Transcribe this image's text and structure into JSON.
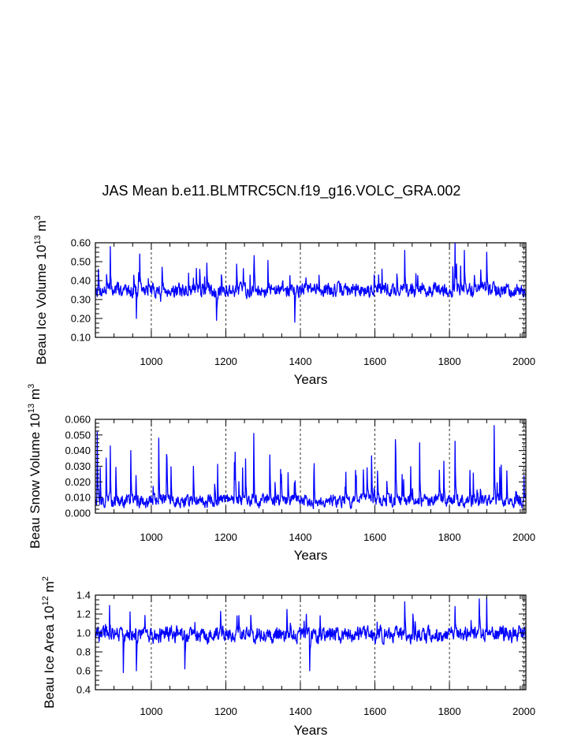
{
  "title": "JAS Mean b.e11.BLMTRC5CN.f19_g16.VOLC_GRA.002",
  "colors": {
    "series": "#0000ff",
    "axis": "#000000",
    "grid": "#000000"
  },
  "chart_data": [
    {
      "type": "line",
      "ylabel_main": "Beau Ice Volume 10",
      "ylabel_exp": "13",
      "ylabel_unit": " m",
      "ylabel_unit_exp": "3",
      "xlabel": "Years",
      "xlim": [
        850,
        2005
      ],
      "ylim": [
        0.1,
        0.6
      ],
      "xticks": [
        1000,
        1200,
        1400,
        1600,
        1800,
        2000
      ],
      "yticks": [
        "0.10",
        "0.20",
        "0.30",
        "0.40",
        "0.50",
        "0.60"
      ],
      "ytick_values": [
        0.1,
        0.2,
        0.3,
        0.4,
        0.5,
        0.6
      ],
      "model": {
        "base": 0.35,
        "amp": 0.055,
        "spike_prob": 0.03,
        "spike": 0.12,
        "seed": 7,
        "anchors": [
          [
            852,
            0.36
          ],
          [
            858,
            0.46
          ],
          [
            890,
            0.58
          ],
          [
            960,
            0.2
          ],
          [
            1025,
            0.29
          ],
          [
            1130,
            0.46
          ],
          [
            1175,
            0.19
          ],
          [
            1385,
            0.18
          ],
          [
            1610,
            0.43
          ],
          [
            1680,
            0.56
          ],
          [
            1815,
            0.6
          ],
          [
            1840,
            0.56
          ],
          [
            1900,
            0.55
          ]
        ]
      }
    },
    {
      "type": "line",
      "ylabel_main": "Beau Snow Volume 10",
      "ylabel_exp": "13",
      "ylabel_unit": " m",
      "ylabel_unit_exp": "3",
      "xlabel": "Years",
      "xlim": [
        850,
        2005
      ],
      "ylim": [
        0.0,
        0.06
      ],
      "xticks": [
        1000,
        1200,
        1400,
        1600,
        1800,
        2000
      ],
      "yticks": [
        "0.000",
        "0.010",
        "0.020",
        "0.030",
        "0.040",
        "0.050",
        "0.060"
      ],
      "ytick_values": [
        0.0,
        0.01,
        0.02,
        0.03,
        0.04,
        0.05,
        0.06
      ],
      "model": {
        "base": 0.008,
        "amp": 0.006,
        "spike_prob": 0.05,
        "spike": 0.022,
        "seed": 13,
        "anchors": [
          [
            855,
            0.052
          ],
          [
            890,
            0.043
          ],
          [
            945,
            0.04
          ],
          [
            1020,
            0.048
          ],
          [
            1275,
            0.051
          ],
          [
            1655,
            0.047
          ],
          [
            1720,
            0.045
          ],
          [
            1815,
            0.046
          ],
          [
            1920,
            0.056
          ],
          [
            2000,
            0.024
          ]
        ]
      }
    },
    {
      "type": "line",
      "ylabel_main": "Beau Ice Area 10",
      "ylabel_exp": "12",
      "ylabel_unit": " m",
      "ylabel_unit_exp": "2",
      "xlabel": "Years",
      "xlim": [
        850,
        2005
      ],
      "ylim": [
        0.4,
        1.4
      ],
      "xticks": [
        1000,
        1200,
        1400,
        1600,
        1800,
        2000
      ],
      "yticks": [
        "0.4",
        "0.6",
        "0.8",
        "1.0",
        "1.2",
        "1.4"
      ],
      "ytick_values": [
        0.4,
        0.6,
        0.8,
        1.0,
        1.2,
        1.4
      ],
      "model": {
        "base": 0.98,
        "amp": 0.12,
        "spike_prob": 0.03,
        "spike": 0.22,
        "seed": 29,
        "anchors": [
          [
            888,
            1.29
          ],
          [
            925,
            0.58
          ],
          [
            960,
            0.6
          ],
          [
            1090,
            0.62
          ],
          [
            1425,
            0.6
          ],
          [
            1680,
            1.33
          ],
          [
            1815,
            1.28
          ],
          [
            1880,
            1.36
          ],
          [
            1900,
            1.37
          ]
        ]
      }
    }
  ]
}
